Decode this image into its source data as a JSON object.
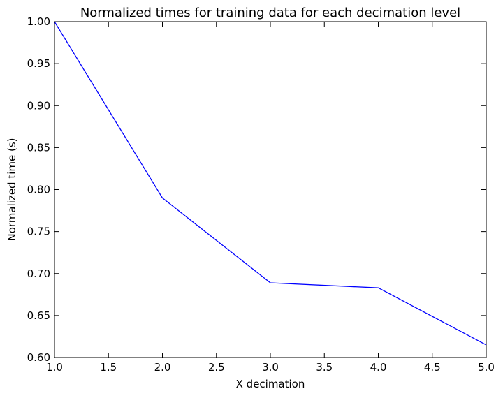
{
  "chart_data": {
    "type": "line",
    "title": "Normalized times for training data for each decimation level",
    "xlabel": "X decimation",
    "ylabel": "Normalized time (s)",
    "xlim": [
      1.0,
      5.0
    ],
    "ylim": [
      0.6,
      1.0
    ],
    "xticks": [
      "1.0",
      "1.5",
      "2.0",
      "2.5",
      "3.0",
      "3.5",
      "4.0",
      "4.5",
      "5.0"
    ],
    "yticks": [
      "0.60",
      "0.65",
      "0.70",
      "0.75",
      "0.80",
      "0.85",
      "0.90",
      "0.95",
      "1.00"
    ],
    "grid": false,
    "series": [
      {
        "color": "#0000ff",
        "x": [
          1,
          2,
          3,
          4,
          5
        ],
        "y": [
          1.0,
          0.79,
          0.689,
          0.683,
          0.615
        ]
      }
    ]
  }
}
